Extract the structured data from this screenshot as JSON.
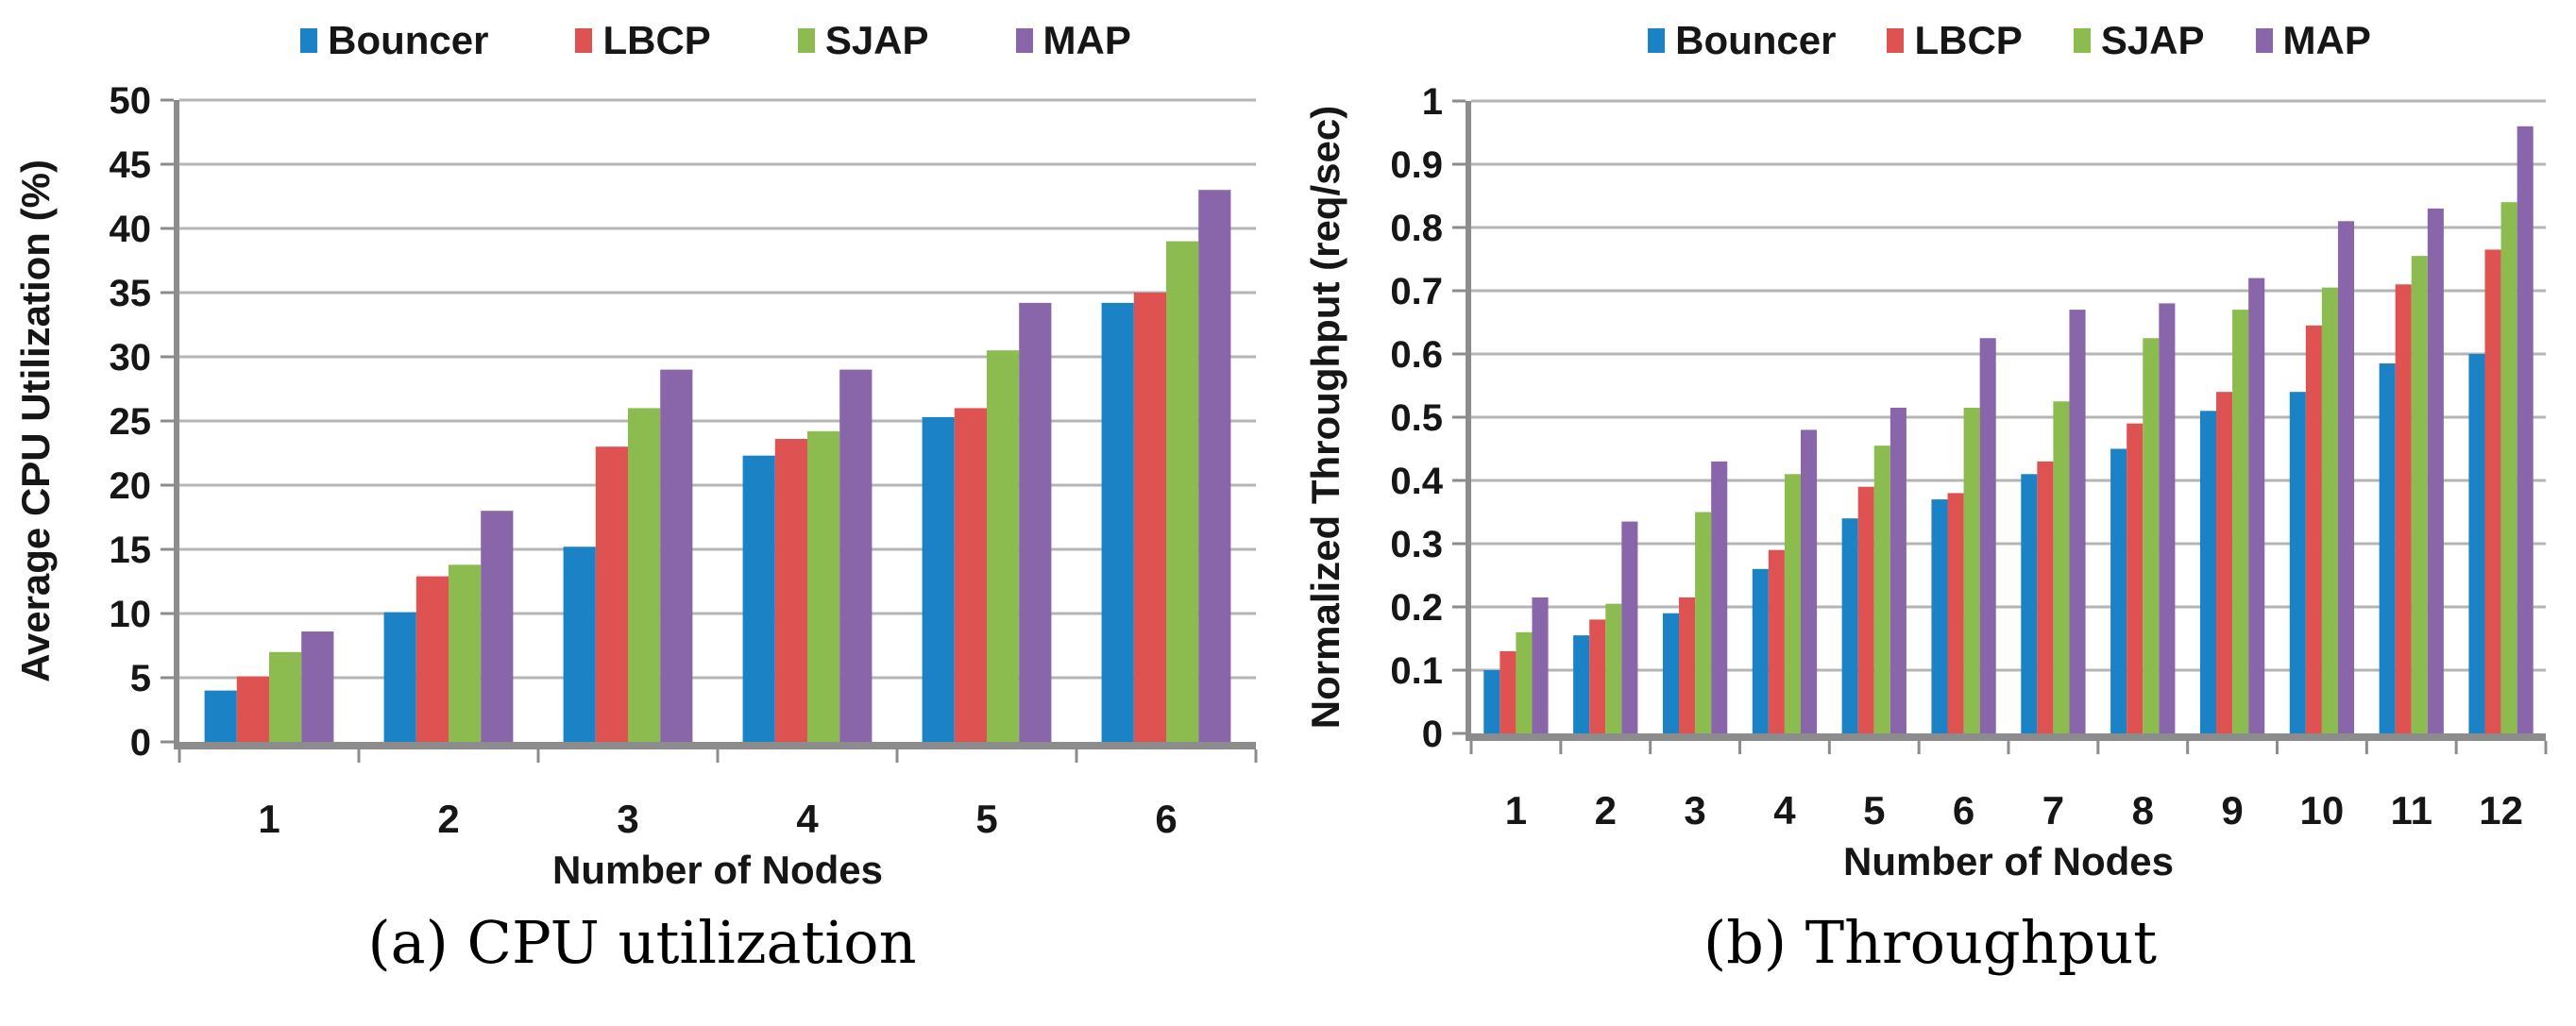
{
  "chart_data": [
    {
      "type": "bar",
      "caption": "(a) CPU utilization",
      "xlabel": "Number of Nodes",
      "ylabel": "Average CPU Utilization (%)",
      "categories": [
        "1",
        "2",
        "3",
        "4",
        "5",
        "6"
      ],
      "ylim": [
        0,
        50
      ],
      "ytick_step": 5,
      "grid": true,
      "legend_position": "top",
      "series": [
        {
          "name": "Bouncer",
          "color": "#1B82C5",
          "values": [
            4.0,
            10.1,
            15.2,
            22.3,
            25.3,
            34.2
          ]
        },
        {
          "name": "LBCP",
          "color": "#DE5252",
          "values": [
            5.1,
            12.9,
            23.0,
            23.6,
            26.0,
            35.0
          ]
        },
        {
          "name": "SJAP",
          "color": "#8CBC4F",
          "values": [
            7.0,
            13.8,
            26.0,
            24.2,
            30.5,
            39.0
          ]
        },
        {
          "name": "MAP",
          "color": "#8966A9",
          "values": [
            8.6,
            18.0,
            29.0,
            29.0,
            34.2,
            43.0
          ]
        }
      ]
    },
    {
      "type": "bar",
      "caption": "(b) Throughput",
      "xlabel": "Number of Nodes",
      "ylabel": "Normalized Throughput  (req/sec)",
      "categories": [
        "1",
        "2",
        "3",
        "4",
        "5",
        "6",
        "7",
        "8",
        "9",
        "10",
        "11",
        "12"
      ],
      "ylim": [
        0,
        1
      ],
      "ytick_step": 0.1,
      "grid": true,
      "legend_position": "top",
      "series": [
        {
          "name": "Bouncer",
          "color": "#1B82C5",
          "values": [
            0.1,
            0.155,
            0.19,
            0.26,
            0.34,
            0.37,
            0.41,
            0.45,
            0.51,
            0.54,
            0.585,
            0.6
          ]
        },
        {
          "name": "LBCP",
          "color": "#DE5252",
          "values": [
            0.13,
            0.18,
            0.215,
            0.29,
            0.39,
            0.38,
            0.43,
            0.49,
            0.54,
            0.645,
            0.71,
            0.765
          ]
        },
        {
          "name": "SJAP",
          "color": "#8CBC4F",
          "values": [
            0.16,
            0.205,
            0.35,
            0.41,
            0.455,
            0.515,
            0.525,
            0.625,
            0.67,
            0.705,
            0.755,
            0.84
          ]
        },
        {
          "name": "MAP",
          "color": "#8966A9",
          "values": [
            0.215,
            0.335,
            0.43,
            0.48,
            0.515,
            0.625,
            0.67,
            0.68,
            0.72,
            0.81,
            0.83,
            0.96
          ]
        }
      ]
    }
  ],
  "colors": {
    "bouncer_blue": "#1B82C5",
    "lbcp_red": "#DE5252",
    "sjap_green": "#8CBC4F",
    "map_purple": "#8966A9",
    "gridline_gray": "#B5B5B5",
    "axis_gray": "#8C8C8C",
    "text_dark": "#161616"
  }
}
